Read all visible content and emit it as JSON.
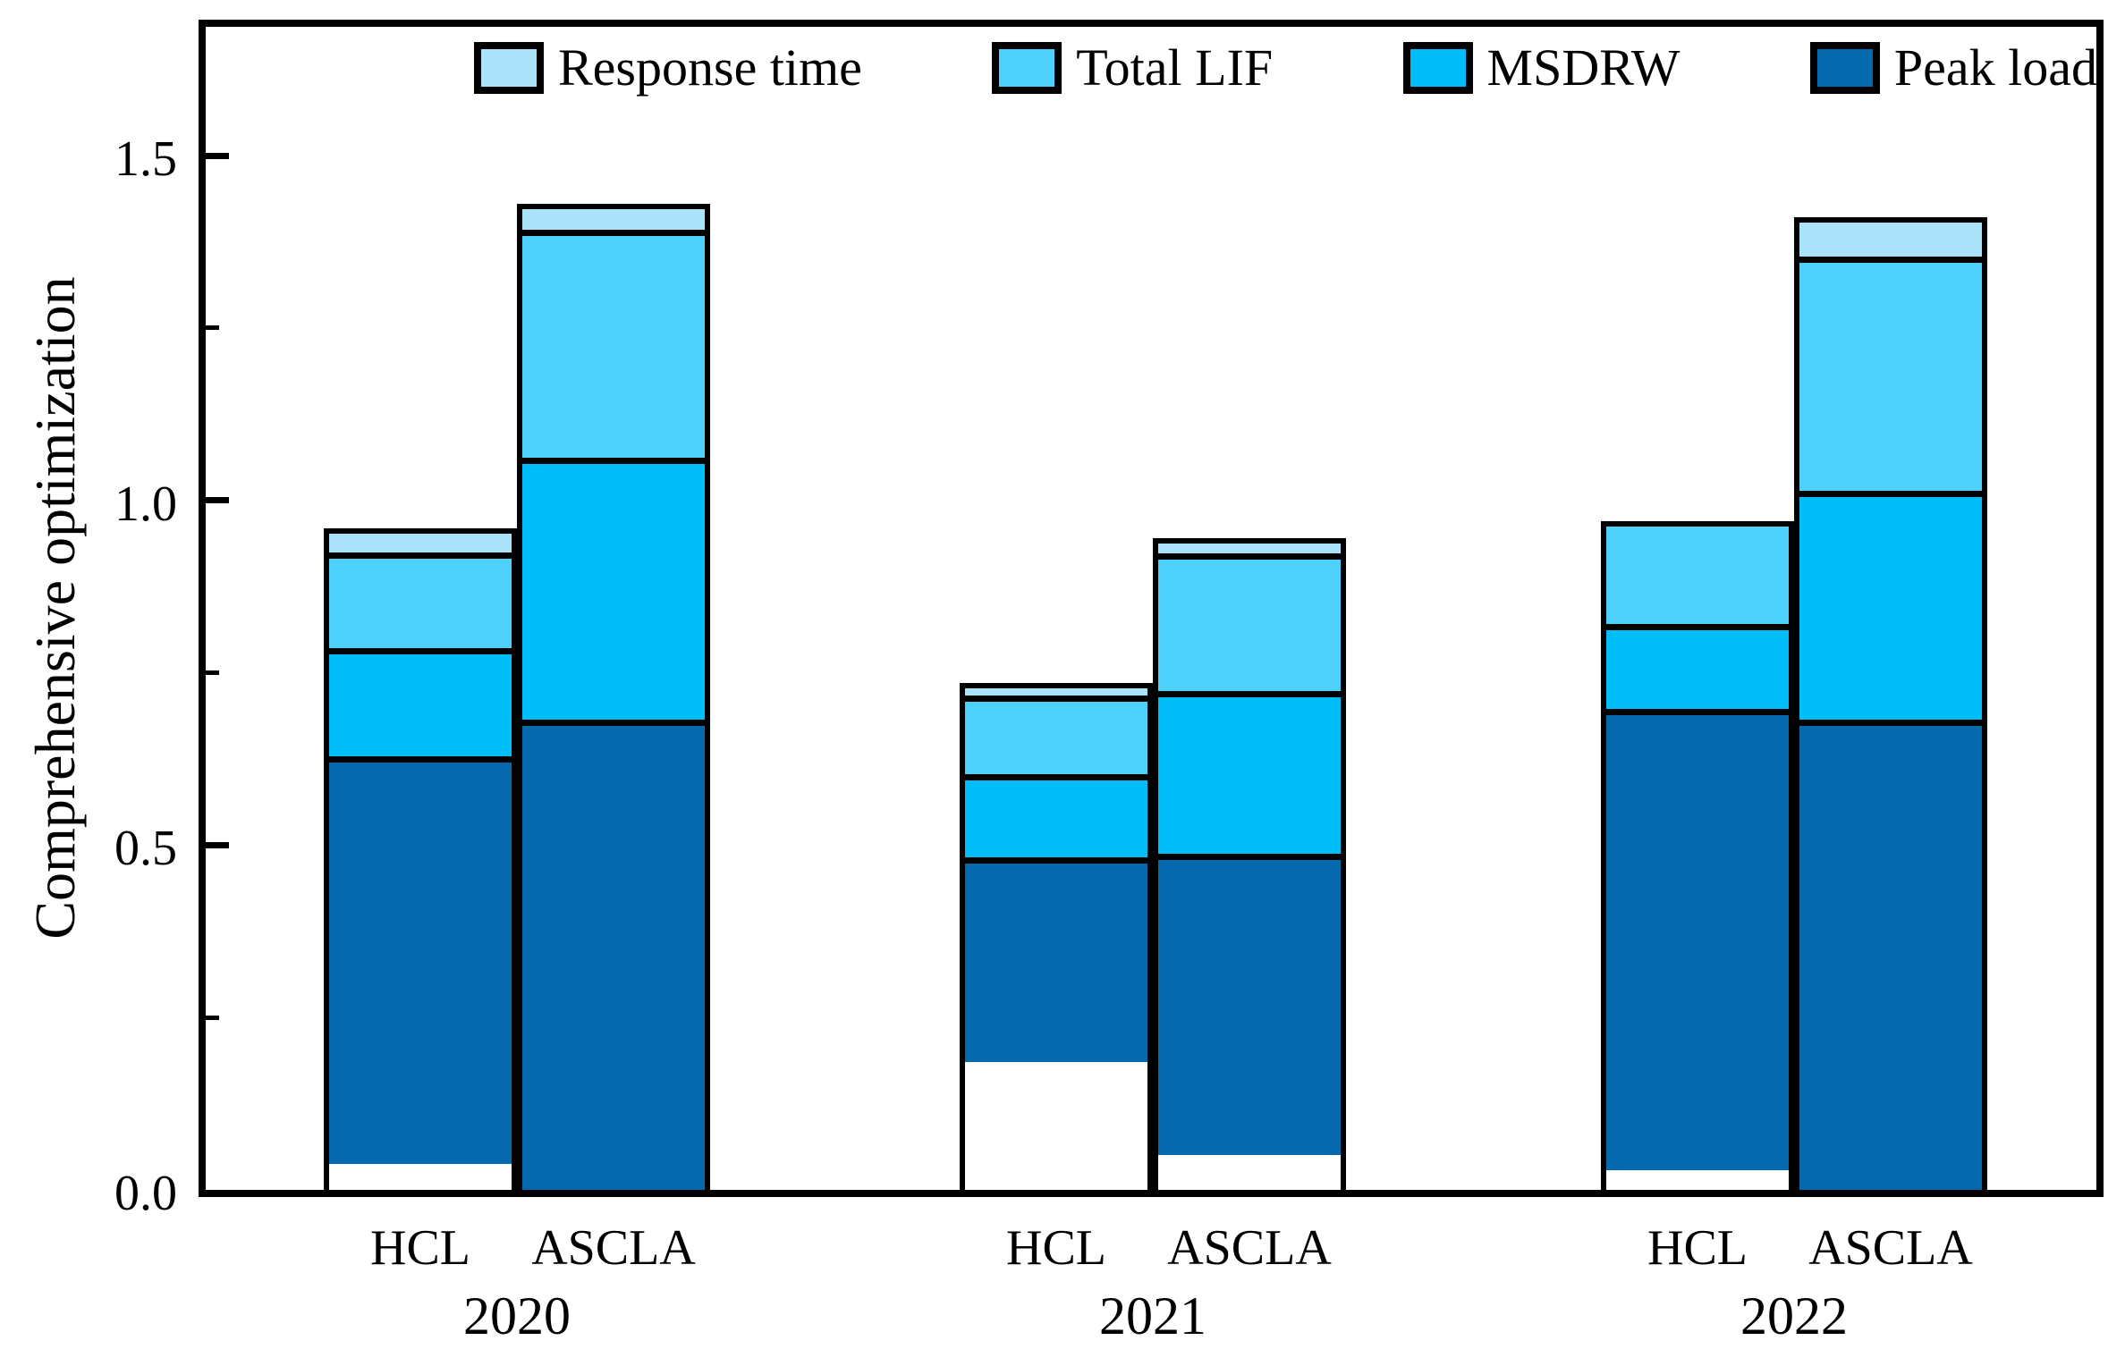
{
  "axes": {
    "y": {
      "title": "Comprehensive optimization",
      "tick_labels": [
        "0.0",
        "0.5",
        "1.0",
        "1.5"
      ],
      "tick_values": [
        0.0,
        0.5,
        1.0,
        1.5
      ],
      "minor_tick_values": [
        0.25,
        0.75,
        1.25
      ],
      "range": [
        0.0,
        1.7
      ]
    },
    "x": {
      "bar_labels": [
        "HCL",
        "ASCLA"
      ],
      "group_labels": [
        "2020",
        "2021",
        "2022"
      ]
    }
  },
  "legend": [
    {
      "label": "Response time",
      "color": "#A9E2F9"
    },
    {
      "label": "Total LIF",
      "color": "#4DD0F9"
    },
    {
      "label": "MSDRW",
      "color": "#00BEF9"
    },
    {
      "label": "Peak load",
      "color": "#0569AD"
    }
  ],
  "chart_data": {
    "type": "bar",
    "stacked": true,
    "title": "",
    "xlabel": "",
    "ylabel": "Comprehensive optimization",
    "ylim": [
      0.0,
      1.7
    ],
    "grid": false,
    "legend_position": "top",
    "categories": [
      "HCL 2020",
      "ASCLA 2020",
      "HCL 2021",
      "ASCLA 2021",
      "HCL 2022",
      "ASCLA 2022"
    ],
    "series": [
      {
        "name": "Peak load",
        "color": "#0569AD",
        "values": [
          0.63,
          0.69,
          0.41,
          0.47,
          0.7,
          0.69
        ]
      },
      {
        "name": "MSDRW",
        "color": "#00BEF9",
        "values": [
          0.16,
          0.38,
          0.16,
          0.25,
          0.12,
          0.33
        ]
      },
      {
        "name": "Total LIF",
        "color": "#4DD0F9",
        "values": [
          0.14,
          0.33,
          0.15,
          0.21,
          0.15,
          0.34
        ]
      },
      {
        "name": "Response time",
        "color": "#A9E2F9",
        "values": [
          0.03,
          0.03,
          0.015,
          0.015,
          0.0,
          0.05
        ]
      }
    ],
    "bar_totals": [
      0.96,
      1.43,
      0.735,
      0.945,
      0.97,
      1.41
    ],
    "groups": [
      {
        "year": "2020",
        "bars": [
          {
            "label": "HCL",
            "segments": {
              "Peak load": 0.63,
              "MSDRW": 0.16,
              "Total LIF": 0.14,
              "Response time": 0.03
            }
          },
          {
            "label": "ASCLA",
            "segments": {
              "Peak load": 0.69,
              "MSDRW": 0.38,
              "Total LIF": 0.33,
              "Response time": 0.03
            }
          }
        ]
      },
      {
        "year": "2021",
        "bars": [
          {
            "label": "HCL",
            "segments": {
              "Peak load": 0.41,
              "MSDRW": 0.16,
              "Total LIF": 0.15,
              "Response time": 0.015
            }
          },
          {
            "label": "ASCLA",
            "segments": {
              "Peak load": 0.47,
              "MSDRW": 0.25,
              "Total LIF": 0.21,
              "Response time": 0.015
            }
          }
        ]
      },
      {
        "year": "2022",
        "bars": [
          {
            "label": "HCL",
            "segments": {
              "Peak load": 0.7,
              "MSDRW": 0.12,
              "Total LIF": 0.15,
              "Response time": 0.0
            }
          },
          {
            "label": "ASCLA",
            "segments": {
              "Peak load": 0.69,
              "MSDRW": 0.33,
              "Total LIF": 0.34,
              "Response time": 0.05
            }
          }
        ]
      }
    ],
    "stack_order_top_to_bottom": [
      "Response time",
      "Total LIF",
      "MSDRW",
      "Peak load"
    ]
  }
}
